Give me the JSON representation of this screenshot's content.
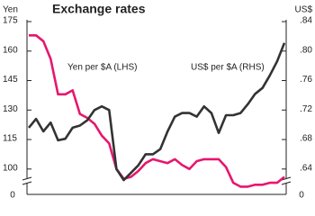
{
  "chart_data": {
    "type": "line",
    "title": "Exchange rates",
    "y_label": "Yen",
    "y2_label": "US$",
    "y_break_label": "0",
    "y2_break_label": "0",
    "annotations": [
      "Yen per $A (LHS)",
      "US$ per $A (RHS)"
    ],
    "categories": [
      null,
      null,
      null,
      null,
      null,
      null,
      null,
      null,
      null,
      null,
      null,
      null,
      null,
      null,
      null,
      null,
      null,
      null,
      null,
      null,
      null,
      null,
      null,
      null,
      null,
      null,
      null,
      null,
      null,
      null,
      null,
      null,
      null,
      null,
      null,
      null
    ],
    "ylim": [
      88,
      175
    ],
    "yticks": [
      100,
      115,
      130,
      145,
      160,
      175
    ],
    "y2lim": [
      0.608,
      0.84
    ],
    "y2ticks": [
      {
        "value": 0.64,
        "label": ".64"
      },
      {
        "value": 0.68,
        "label": ".68"
      },
      {
        "value": 0.72,
        "label": ".72"
      },
      {
        "value": 0.76,
        "label": ".76"
      },
      {
        "value": 0.8,
        "label": ".80"
      },
      {
        "value": 0.84,
        "label": ".84"
      }
    ],
    "grid": false,
    "series": [
      {
        "name": "Yen per $A (LHS)",
        "color": "#e6176f",
        "axis": "y",
        "values": [
          168,
          168,
          165,
          156,
          138,
          138,
          140,
          128,
          126,
          123,
          117,
          113,
          100,
          95,
          96,
          99,
          103,
          105,
          104,
          103,
          105,
          102,
          100,
          104,
          105,
          105,
          105,
          101,
          93,
          91,
          91,
          92,
          92,
          93,
          93,
          96
        ]
      },
      {
        "name": "US$ per $A (RHS)",
        "color": "#333333",
        "axis": "y2",
        "values": [
          0.696,
          0.708,
          0.691,
          0.703,
          0.679,
          0.681,
          0.696,
          0.699,
          0.706,
          0.72,
          0.725,
          0.72,
          0.64,
          0.625,
          0.635,
          0.645,
          0.66,
          0.66,
          0.667,
          0.691,
          0.711,
          0.716,
          0.716,
          0.711,
          0.725,
          0.716,
          0.689,
          0.713,
          0.713,
          0.716,
          0.728,
          0.742,
          0.75,
          0.767,
          0.786,
          0.811
        ]
      }
    ]
  }
}
